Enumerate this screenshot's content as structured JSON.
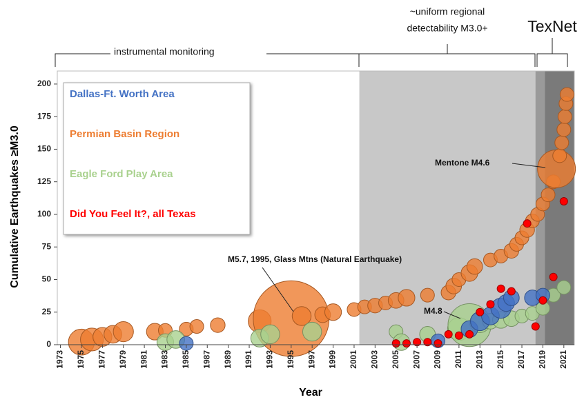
{
  "chart_data": {
    "type": "bubble",
    "xlabel": "Year",
    "ylabel": "Cumulative Earthquakes ≥M3.0",
    "xlim": [
      1972.7,
      2022
    ],
    "ylim": [
      0,
      210
    ],
    "xticks": [
      1973,
      1975,
      1977,
      1979,
      1981,
      1983,
      1985,
      1987,
      1989,
      1991,
      1993,
      1995,
      1997,
      1999,
      2001,
      2003,
      2005,
      2007,
      2009,
      2011,
      2013,
      2015,
      2017,
      2019,
      2021
    ],
    "yticks": [
      0,
      25,
      50,
      75,
      100,
      125,
      150,
      175,
      200
    ],
    "bands": [
      {
        "from": 2001.5,
        "to": 2022,
        "color": "#c8c8c8"
      },
      {
        "from": 2018.3,
        "to": 2022,
        "color": "#9a9a9a"
      },
      {
        "from": 2019.2,
        "to": 2022,
        "color": "#7a7a7a"
      }
    ],
    "annotations": {
      "monitoring": "instrumental monitoring",
      "uniform": [
        "~uniform regional",
        "detectability M3.0+"
      ],
      "texnet": "TexNet",
      "mentone": "Mentone M4.6",
      "m48": "M4.8",
      "glass": "M5.7, 1995, Glass Mtns (Natural Earthquake)"
    },
    "series": [
      {
        "name": "Permian Basin Region",
        "color": "#ed7d31",
        "x": [
          1975,
          1976,
          1977,
          1978,
          1979,
          1982,
          1983,
          1985,
          1986,
          1988,
          1992,
          1995,
          1996,
          1998,
          1999,
          2001,
          2002,
          2003,
          2004,
          2005,
          2006,
          2008,
          2010,
          2010.5,
          2011,
          2012,
          2012.5,
          2014,
          2015,
          2016,
          2016.5,
          2017,
          2017.5,
          2018,
          2018.5,
          2019,
          2019.5,
          2020,
          2020.3,
          2020.6,
          2020.8,
          2021,
          2021.1,
          2021.2,
          2021.3
        ],
        "y": [
          2,
          4,
          6,
          8,
          10,
          10,
          11,
          12,
          14,
          15,
          18,
          20,
          22,
          23,
          25,
          27,
          29,
          30,
          32,
          34,
          36,
          38,
          40,
          45,
          50,
          55,
          60,
          65,
          68,
          72,
          77,
          82,
          88,
          95,
          100,
          108,
          115,
          125,
          135,
          145,
          155,
          165,
          175,
          185,
          192
        ],
        "sizes": [
          4.0,
          3.8,
          3.5,
          3.4,
          3.6,
          3.3,
          3.0,
          3.0,
          3.0,
          3.1,
          3.8,
          5.7,
          3.5,
          3.2,
          3.3,
          3.0,
          3.0,
          3.1,
          3.0,
          3.2,
          3.3,
          3.0,
          3.1,
          3.2,
          3.0,
          3.3,
          3.2,
          3.0,
          3.0,
          3.1,
          3.0,
          3.0,
          3.1,
          3.0,
          3.0,
          3.0,
          3.0,
          3.0,
          4.6,
          3.0,
          3.0,
          3.0,
          3.0,
          3.0,
          3.0
        ]
      },
      {
        "name": "Eagle Ford Play Area",
        "color": "#a9d18e",
        "x": [
          1983,
          1984,
          1992,
          1993,
          1997,
          2005,
          2005.5,
          2008,
          2011,
          2012,
          2013,
          2014,
          2015,
          2016,
          2017,
          2018,
          2019,
          2020,
          2021
        ],
        "y": [
          2,
          4,
          5,
          8,
          10,
          10,
          2,
          8,
          12,
          15,
          17,
          18,
          19,
          20,
          22,
          24,
          28,
          38,
          44
        ],
        "sizes": [
          3.3,
          3.4,
          3.4,
          3.5,
          3.5,
          3.0,
          3.3,
          3.2,
          3.8,
          4.8,
          3.6,
          3.2,
          3.3,
          3.2,
          3.0,
          3.0,
          3.0,
          3.0,
          3.0
        ]
      },
      {
        "name": "Dallas-Ft. Worth Area",
        "color": "#4472c4",
        "x": [
          1985,
          2009,
          2012,
          2013,
          2014,
          2015,
          2015.5,
          2016,
          2018,
          2019
        ],
        "y": [
          1,
          3,
          12,
          18,
          22,
          28,
          32,
          36,
          36,
          38
        ],
        "sizes": [
          3.0,
          3.0,
          3.3,
          3.5,
          3.4,
          3.6,
          3.3,
          3.2,
          3.2,
          3.0
        ]
      },
      {
        "name": "Did You Feel It?, all Texas",
        "color": "#ff0000",
        "x": [
          2005,
          2006,
          2007,
          2008,
          2009,
          2010,
          2011,
          2012,
          2013,
          2014,
          2015,
          2016,
          2017.5,
          2018.3,
          2019,
          2020,
          2021
        ],
        "y": [
          1,
          1,
          2,
          2,
          1,
          8,
          7,
          8,
          25,
          31,
          43,
          41,
          93,
          14,
          34,
          52,
          110
        ]
      }
    ],
    "legend_order": [
      2,
      0,
      1,
      3
    ]
  }
}
